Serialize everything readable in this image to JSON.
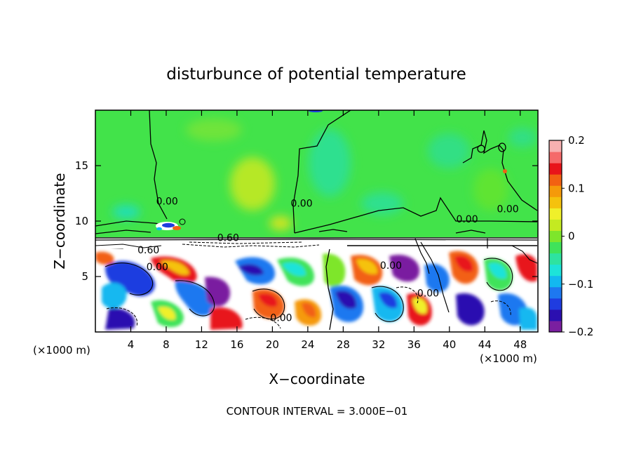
{
  "chart_data": {
    "type": "heatmap",
    "title": "disturbunce of potential temperature",
    "xlabel": "X−coordinate",
    "ylabel": "Z−coordinate",
    "x_unit_left": "(×1000 m)",
    "x_unit_right": "(×1000 m)",
    "x_ticks": [
      4,
      8,
      12,
      16,
      20,
      24,
      28,
      32,
      36,
      40,
      44,
      48
    ],
    "y_ticks": [
      5,
      10,
      15
    ],
    "xlim": [
      0,
      50
    ],
    "ylim": [
      0,
      20
    ],
    "footer": "CONTOUR INTERVAL = 3.000E−01",
    "colorbar": {
      "range": [
        -0.2,
        0.2
      ],
      "tick_values": [
        0.2,
        0.1,
        0,
        -0.1,
        -0.2
      ],
      "tick_labels": [
        "0.2",
        "0.1",
        "0",
        "−0.1",
        "−0.2"
      ],
      "colors": [
        "#7a1fa0",
        "#2b0fb0",
        "#1f3ce0",
        "#1e78f0",
        "#13b8f0",
        "#1de3d9",
        "#2ee3a0",
        "#3fe35a",
        "#7ee62b",
        "#c4ea21",
        "#f0f02a",
        "#f5c20d",
        "#f59a0a",
        "#f26112",
        "#e8141a",
        "#f56a6a",
        "#f7b0b0"
      ]
    },
    "contour_labels": [
      {
        "text": "0.00",
        "x": 8.1,
        "z": 11.8
      },
      {
        "text": "0.00",
        "x": 23.3,
        "z": 11.6
      },
      {
        "text": "0.00",
        "x": 42.0,
        "z": 10.2
      },
      {
        "text": "0.00",
        "x": 46.6,
        "z": 11.1
      },
      {
        "text": "0.00",
        "x": 7.0,
        "z": 5.9
      },
      {
        "text": "0.00",
        "x": 21.0,
        "z": 1.3
      },
      {
        "text": "0.00",
        "x": 33.4,
        "z": 6.0
      },
      {
        "text": "0.00",
        "x": 37.6,
        "z": 3.5
      },
      {
        "text": "0.60",
        "x": 6.0,
        "z": 7.4
      },
      {
        "text": "0.60",
        "x": 15.0,
        "z": 8.5
      }
    ],
    "grid": false
  }
}
